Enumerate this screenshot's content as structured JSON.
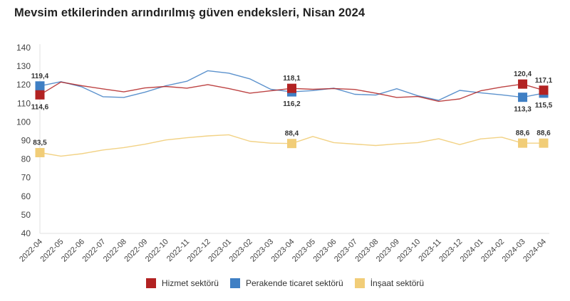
{
  "title": "Mevsim etkilerinden arındırılmış güven endeksleri, Nisan 2024",
  "chart_data": {
    "type": "line",
    "title": "Mevsim etkilerinden arındırılmış güven endeksleri, Nisan 2024",
    "xlabel": "",
    "ylabel": "",
    "ylim": [
      40,
      140
    ],
    "yticks": [
      40,
      50,
      60,
      70,
      80,
      90,
      100,
      110,
      120,
      130,
      140
    ],
    "grid": false,
    "legend_position": "bottom",
    "categories": [
      "2022-04",
      "2022-05",
      "2022-06",
      "2022-07",
      "2022-08",
      "2022-09",
      "2022-10",
      "2022-11",
      "2022-12",
      "2023-01",
      "2023-02",
      "2023-03",
      "2023-04",
      "2023-05",
      "2023-06",
      "2023-07",
      "2023-08",
      "2023-09",
      "2023-10",
      "2023-11",
      "2023-12",
      "2024-01",
      "2024-02",
      "2024-03",
      "2024-04"
    ],
    "series": [
      {
        "name": "Hizmet sektörü",
        "color": "#b22222",
        "values": [
          114.6,
          121.5,
          119.5,
          117.8,
          116.2,
          118.3,
          119.1,
          118.2,
          120.1,
          118.0,
          115.5,
          116.8,
          118.1,
          117.6,
          118.0,
          117.5,
          115.5,
          113.2,
          113.7,
          111.1,
          112.4,
          116.8,
          118.8,
          120.4,
          117.1
        ],
        "labeled_points": [
          {
            "index": 0,
            "label": "114,6",
            "position": "below"
          },
          {
            "index": 12,
            "label": "118,1",
            "position": "above"
          },
          {
            "index": 23,
            "label": "120,4",
            "position": "above"
          },
          {
            "index": 24,
            "label": "117,1",
            "position": "above"
          }
        ]
      },
      {
        "name": "Perakende ticaret sektörü",
        "color": "#3f7fc4",
        "values": [
          119.4,
          121.7,
          118.9,
          113.6,
          113.2,
          116.0,
          119.5,
          121.9,
          127.6,
          126.3,
          123.2,
          117.6,
          116.2,
          116.9,
          118.2,
          114.9,
          114.5,
          117.9,
          114.1,
          111.7,
          117.0,
          115.7,
          114.6,
          113.3,
          115.5
        ],
        "labeled_points": [
          {
            "index": 0,
            "label": "119,4",
            "position": "above"
          },
          {
            "index": 12,
            "label": "116,2",
            "position": "below"
          },
          {
            "index": 23,
            "label": "113,3",
            "position": "below"
          },
          {
            "index": 24,
            "label": "115,5",
            "position": "below"
          }
        ]
      },
      {
        "name": "İnşaat sektörü",
        "color": "#f1cd78",
        "values": [
          83.5,
          81.6,
          82.9,
          84.9,
          86.2,
          88.0,
          90.3,
          91.5,
          92.5,
          93.1,
          89.6,
          88.6,
          88.4,
          92.2,
          88.9,
          88.1,
          87.3,
          88.2,
          88.9,
          91.0,
          87.8,
          90.9,
          91.8,
          88.6,
          88.6
        ],
        "labeled_points": [
          {
            "index": 0,
            "label": "83,5",
            "position": "above"
          },
          {
            "index": 12,
            "label": "88,4",
            "position": "above"
          },
          {
            "index": 23,
            "label": "88,6",
            "position": "above"
          },
          {
            "index": 24,
            "label": "88,6",
            "position": "above"
          }
        ]
      }
    ]
  },
  "legend": [
    {
      "label": "Hizmet sektörü",
      "color": "#b22222"
    },
    {
      "label": "Perakende ticaret sektörü",
      "color": "#3f7fc4"
    },
    {
      "label": "İnşaat sektörü",
      "color": "#f1cd78"
    }
  ]
}
